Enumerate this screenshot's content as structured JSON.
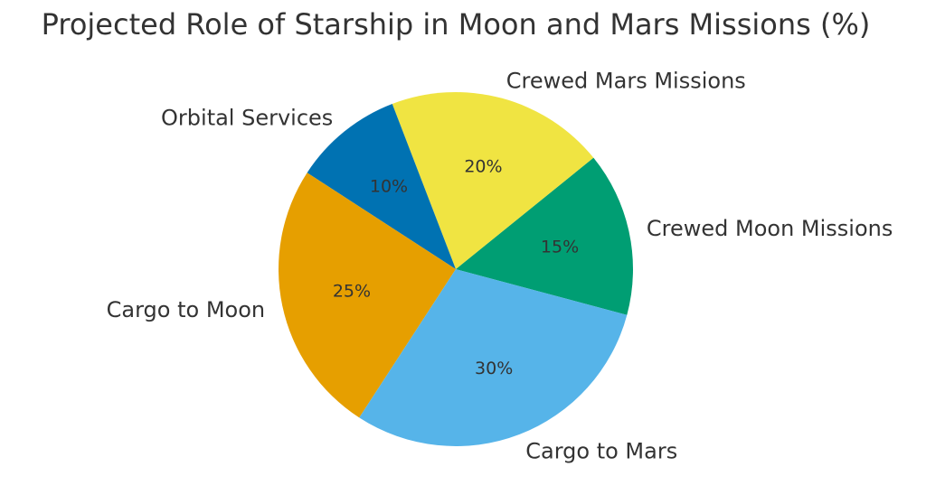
{
  "chart_data": {
    "type": "pie",
    "title": "Projected Role of Starship in Moon and Mars Missions (%)",
    "categories": [
      "Crewed Moon Missions",
      "Crewed Mars Missions",
      "Orbital Services",
      "Cargo to Moon",
      "Cargo to Mars"
    ],
    "values": [
      15,
      20,
      10,
      25,
      30
    ],
    "value_labels": [
      "15%",
      "20%",
      "10%",
      "25%",
      "30%"
    ],
    "colors": [
      "#009E73",
      "#F0E442",
      "#0072B2",
      "#E69F00",
      "#56B4E9"
    ],
    "start_angle_deg": -15,
    "direction": "counterclockwise",
    "legend": "none"
  }
}
